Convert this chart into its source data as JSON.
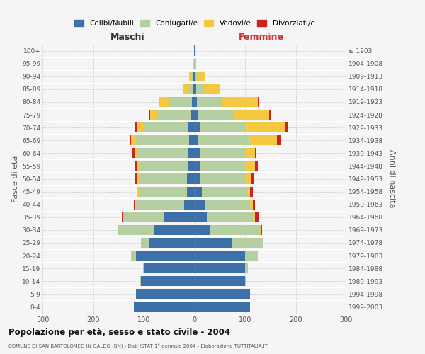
{
  "age_groups": [
    "0-4",
    "5-9",
    "10-14",
    "15-19",
    "20-24",
    "25-29",
    "30-34",
    "35-39",
    "40-44",
    "45-49",
    "50-54",
    "55-59",
    "60-64",
    "65-69",
    "70-74",
    "75-79",
    "80-84",
    "85-89",
    "90-94",
    "95-99",
    "100+"
  ],
  "birth_years": [
    "1999-2003",
    "1994-1998",
    "1989-1993",
    "1984-1988",
    "1979-1983",
    "1974-1978",
    "1969-1973",
    "1964-1968",
    "1959-1963",
    "1954-1958",
    "1949-1953",
    "1944-1948",
    "1939-1943",
    "1934-1938",
    "1929-1933",
    "1924-1928",
    "1919-1923",
    "1914-1918",
    "1909-1913",
    "1904-1908",
    "≤ 1903"
  ],
  "colors": {
    "celibi": "#3d6fa8",
    "coniugati": "#b5cfa0",
    "vedovi": "#f5c842",
    "divorziati": "#cc2222"
  },
  "maschi": {
    "celibi": [
      120,
      115,
      105,
      100,
      115,
      90,
      80,
      60,
      20,
      15,
      15,
      12,
      12,
      10,
      12,
      8,
      5,
      3,
      2,
      0,
      1
    ],
    "coniugati": [
      0,
      0,
      2,
      2,
      10,
      15,
      70,
      80,
      95,
      95,
      95,
      95,
      100,
      105,
      90,
      65,
      45,
      8,
      3,
      1,
      0
    ],
    "vedovi": [
      0,
      0,
      0,
      0,
      0,
      1,
      1,
      2,
      2,
      2,
      3,
      5,
      5,
      10,
      10,
      15,
      20,
      10,
      5,
      1,
      0
    ],
    "divorziati": [
      0,
      0,
      0,
      0,
      0,
      0,
      1,
      2,
      2,
      2,
      5,
      5,
      5,
      2,
      5,
      1,
      1,
      0,
      0,
      0,
      0
    ]
  },
  "femmine": {
    "celibi": [
      110,
      110,
      100,
      100,
      100,
      75,
      30,
      25,
      20,
      15,
      12,
      10,
      10,
      8,
      10,
      8,
      5,
      4,
      2,
      1,
      1
    ],
    "coniugati": [
      0,
      0,
      2,
      5,
      25,
      60,
      100,
      90,
      90,
      90,
      90,
      90,
      90,
      100,
      90,
      70,
      50,
      15,
      5,
      1,
      0
    ],
    "vedovi": [
      0,
      0,
      0,
      0,
      0,
      1,
      2,
      5,
      5,
      5,
      10,
      20,
      20,
      55,
      80,
      70,
      70,
      30,
      15,
      2,
      0
    ],
    "divorziati": [
      0,
      0,
      0,
      0,
      0,
      1,
      2,
      8,
      5,
      5,
      5,
      5,
      2,
      8,
      5,
      2,
      1,
      0,
      0,
      0,
      0
    ]
  },
  "title": "Popolazione per età, sesso e stato civile - 2004",
  "subtitle": "COMUNE DI SAN BARTOLOMEO IN GALDO (BN) - Dati ISTAT 1° gennaio 2004 - Elaborazione TUTTITALIA.IT",
  "ylabel_left": "Fasce di età",
  "ylabel_right": "Anni di nascita",
  "xlabel_left": "Maschi",
  "xlabel_right": "Femmine",
  "xlim": 300,
  "background_color": "#f5f5f5",
  "grid_color": "#cccccc"
}
